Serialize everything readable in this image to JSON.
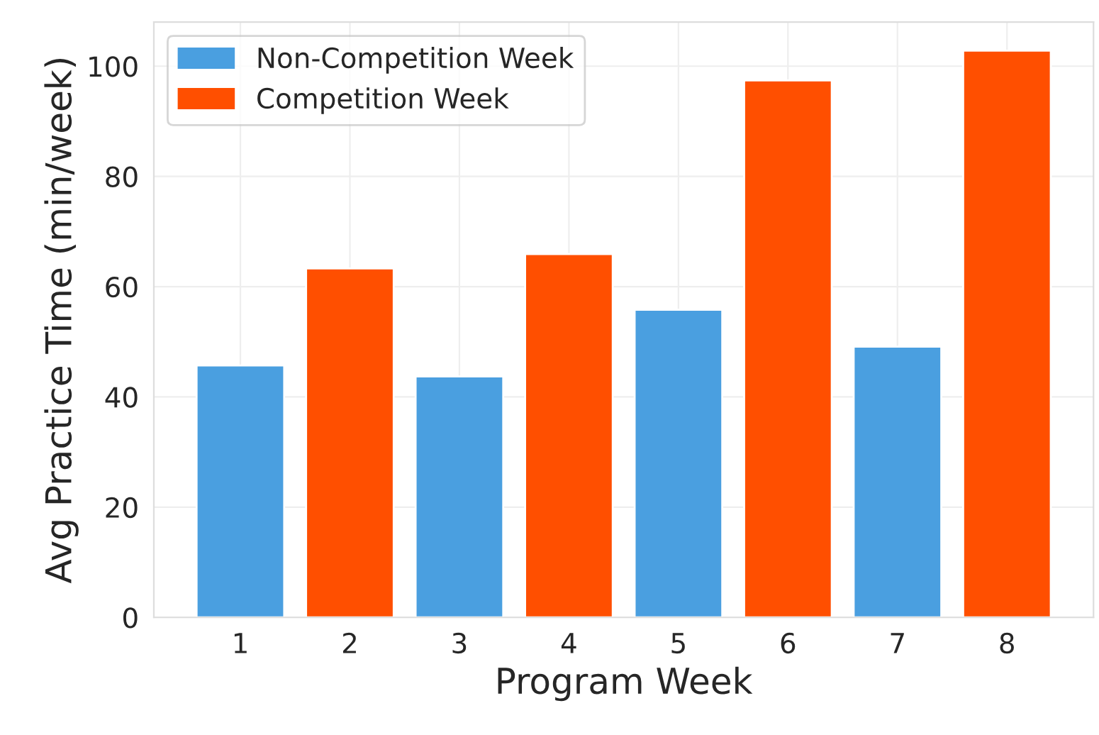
{
  "chart_data": {
    "type": "bar",
    "xlabel": "Program Week",
    "ylabel": "Avg Practice Time (min/week)",
    "categories": [
      "1",
      "2",
      "3",
      "4",
      "5",
      "6",
      "7",
      "8"
    ],
    "series": [
      {
        "name": "Non-Competition Week",
        "color": "#4a9fe0",
        "values": [
          45.7,
          null,
          43.7,
          null,
          55.8,
          null,
          49.1,
          null
        ]
      },
      {
        "name": "Competition Week",
        "color": "#ff4f00",
        "values": [
          null,
          63.3,
          null,
          65.9,
          null,
          97.4,
          null,
          102.8
        ]
      }
    ],
    "ylim": [
      0,
      108
    ],
    "yticks": [
      0,
      20,
      40,
      60,
      80,
      100
    ],
    "grid": true,
    "legend": "top left"
  }
}
